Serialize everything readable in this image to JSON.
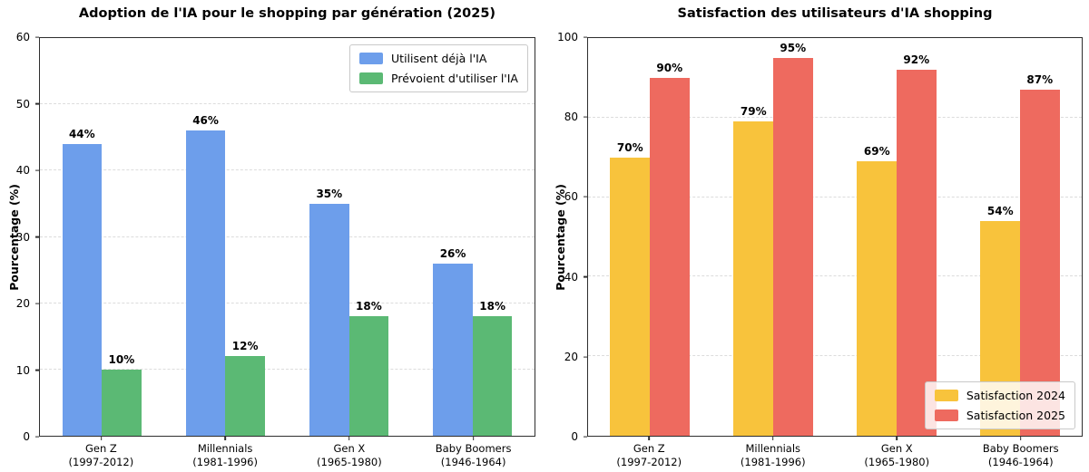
{
  "chart_data": [
    {
      "type": "bar",
      "title": "Adoption de l'IA pour le shopping par génération (2025)",
      "ylabel": "Pourcentage (%)",
      "ylim": [
        0,
        60
      ],
      "yticks": [
        0,
        10,
        20,
        30,
        40,
        50,
        60
      ],
      "grid": "horizontal-dashed",
      "legend_position": "top-right",
      "value_suffix": "%",
      "categories": [
        {
          "label": "Gen Z",
          "sublabel": "(1997-2012)"
        },
        {
          "label": "Millennials",
          "sublabel": "(1981-1996)"
        },
        {
          "label": "Gen X",
          "sublabel": "(1965-1980)"
        },
        {
          "label": "Baby Boomers",
          "sublabel": "(1946-1964)"
        }
      ],
      "series": [
        {
          "name": "Utilisent déjà l'IA",
          "color": "#6D9EEB",
          "values": [
            44,
            46,
            35,
            26
          ]
        },
        {
          "name": "Prévoient d'utiliser l'IA",
          "color": "#5BB974",
          "values": [
            10,
            12,
            18,
            18
          ]
        }
      ]
    },
    {
      "type": "bar",
      "title": "Satisfaction des utilisateurs d'IA shopping",
      "ylabel": "Pourcentage (%)",
      "ylim": [
        0,
        100
      ],
      "yticks": [
        0,
        20,
        40,
        60,
        80,
        100
      ],
      "grid": "horizontal-dashed",
      "legend_position": "bottom-right",
      "value_suffix": "%",
      "categories": [
        {
          "label": "Gen Z",
          "sublabel": "(1997-2012)"
        },
        {
          "label": "Millennials",
          "sublabel": "(1981-1996)"
        },
        {
          "label": "Gen X",
          "sublabel": "(1965-1980)"
        },
        {
          "label": "Baby Boomers",
          "sublabel": "(1946-1964)"
        }
      ],
      "series": [
        {
          "name": "Satisfaction 2024",
          "color": "#F8C33C",
          "values": [
            70,
            79,
            69,
            54
          ]
        },
        {
          "name": "Satisfaction 2025",
          "color": "#EE6A5F",
          "values": [
            90,
            95,
            92,
            87
          ]
        }
      ]
    }
  ]
}
